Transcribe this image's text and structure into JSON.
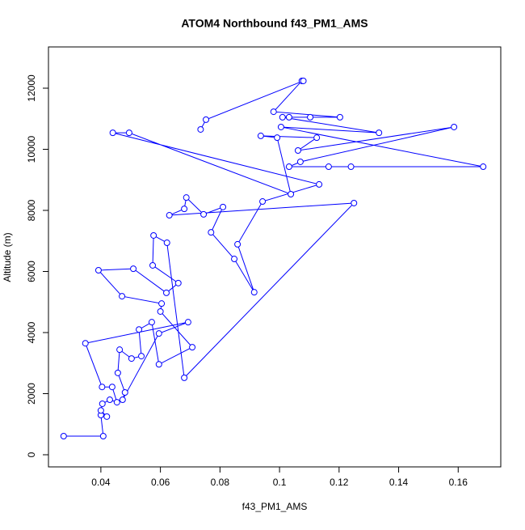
{
  "chart_data": {
    "type": "line",
    "title": "ATOM4 Northbound f43_PM1_AMS",
    "xlabel": "f43_PM1_AMS",
    "ylabel": "Altitude (m)",
    "color": "#0000ff",
    "marker": "circle",
    "x": [
      0.0275,
      0.0408,
      0.04,
      0.042,
      0.04,
      0.0405,
      0.043,
      0.0454,
      0.0438,
      0.0404,
      0.0348,
      0.0693,
      0.0595,
      0.0473,
      0.0481,
      0.0457,
      0.0463,
      0.0503,
      0.0536,
      0.0528,
      0.0571,
      0.0595,
      0.0707,
      0.06,
      0.0604,
      0.0471,
      0.0392,
      0.0509,
      0.062,
      0.066,
      0.0574,
      0.0577,
      0.0622,
      0.068,
      0.125,
      0.063,
      0.068,
      0.0687,
      0.0745,
      0.081,
      0.077,
      0.0848,
      0.0915,
      0.0859,
      0.0943,
      0.1133,
      0.044,
      0.0495,
      0.1038,
      0.0992,
      0.0937,
      0.1125,
      0.1062,
      0.1586,
      0.107,
      0.1032,
      0.1165,
      0.124,
      0.1684,
      0.1005,
      0.1334,
      0.101,
      0.1032,
      0.1103,
      0.1203,
      0.098,
      0.1075,
      0.108,
      0.0753,
      0.0735
    ],
    "values": [
      610,
      610,
      1300,
      1250,
      1450,
      1670,
      1800,
      1720,
      2220,
      2220,
      3650,
      4340,
      3970,
      1800,
      2040,
      2680,
      3440,
      3150,
      3230,
      4100,
      4340,
      2960,
      3520,
      4690,
      4950,
      5190,
      6040,
      6090,
      5300,
      5620,
      6200,
      7180,
      6940,
      2520,
      8240,
      7840,
      8050,
      8420,
      7870,
      8110,
      7280,
      6410,
      5320,
      6890,
      8290,
      8850,
      10540,
      10540,
      8530,
      10380,
      10440,
      10380,
      9960,
      10730,
      9590,
      9430,
      9430,
      9430,
      9430,
      10730,
      10540,
      11050,
      11050,
      11050,
      11050,
      11230,
      12240,
      12240,
      10970,
      10650
    ],
    "xlim": [
      0.0224,
      0.1743
    ],
    "ylim": [
      -397,
      13351
    ],
    "xticks": [
      0.04,
      0.06,
      0.08,
      0.1,
      0.12,
      0.14,
      0.16
    ],
    "yticks": [
      0,
      2000,
      4000,
      6000,
      8000,
      10000,
      12000
    ]
  }
}
